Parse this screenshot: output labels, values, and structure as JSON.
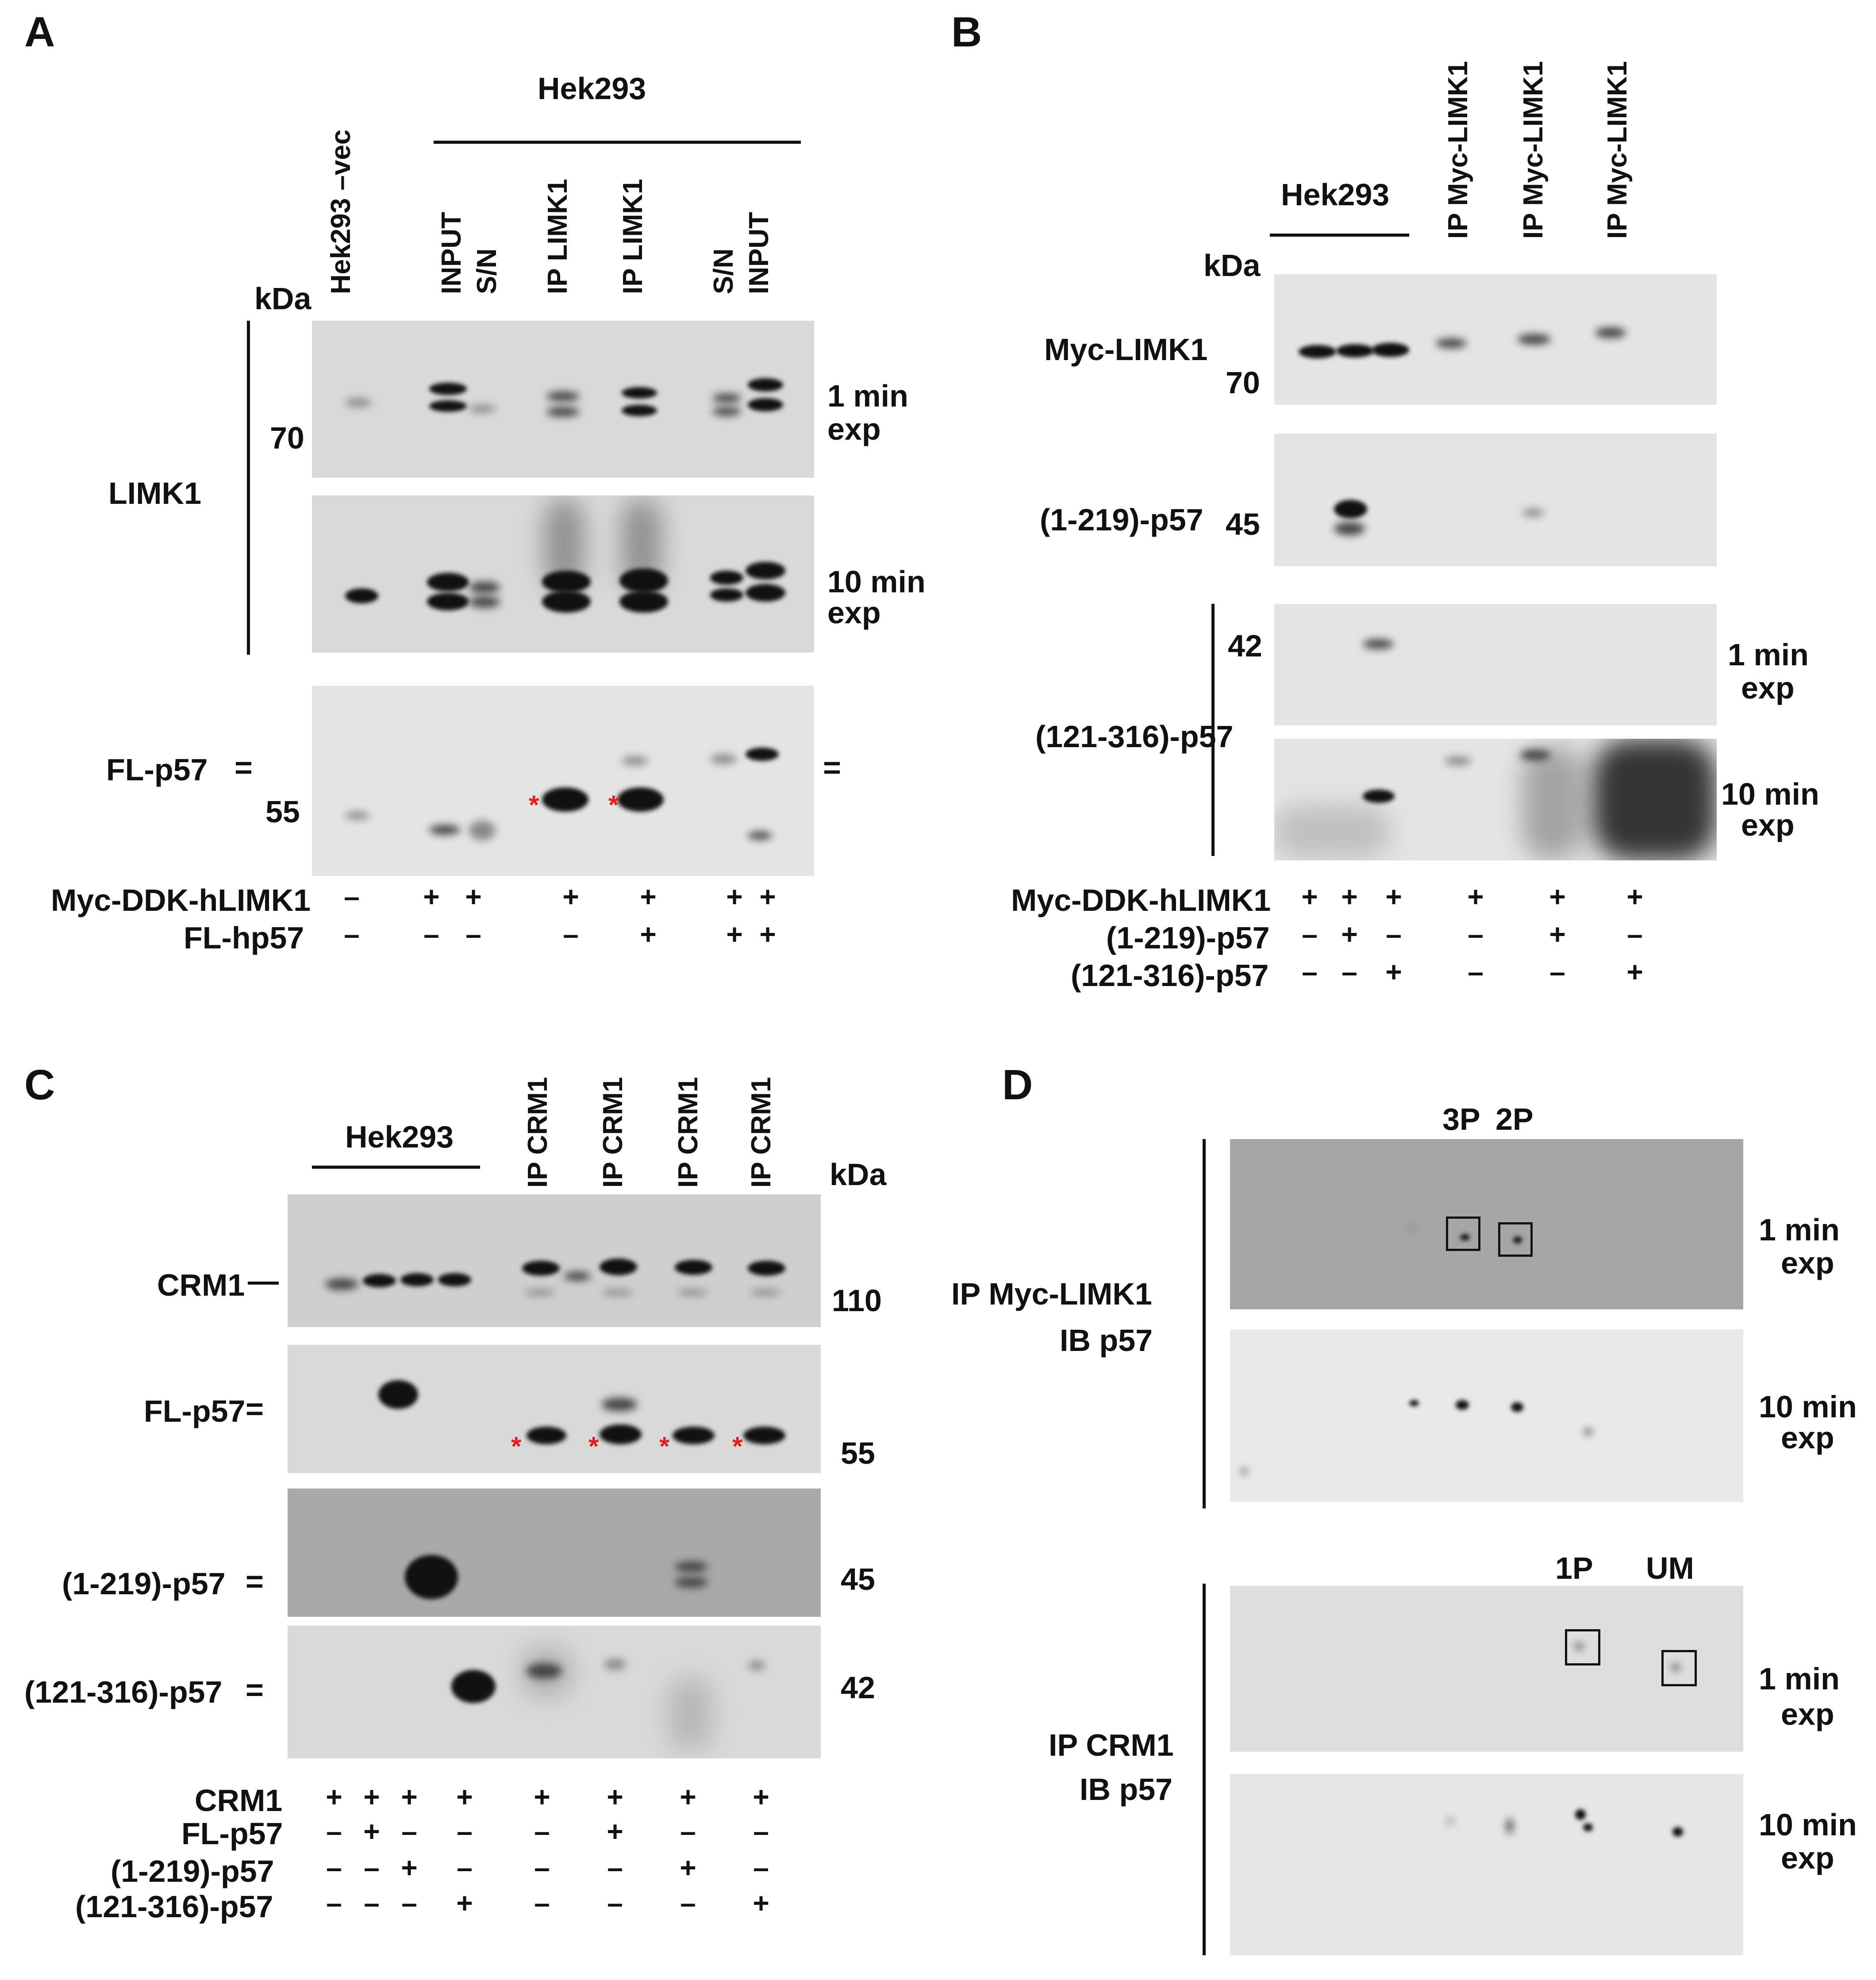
{
  "panels": {
    "A": {
      "letter": "A",
      "cell_line": "Hek293",
      "lanes": [
        "Hek293 –vec",
        "INPUT",
        "S/N",
        "IP LIMK1",
        "IP LIMK1",
        "S/N",
        "INPUT"
      ],
      "kda_label": "kDa",
      "protein_limk1": "LIMK1",
      "mw_70": "70",
      "protein_flp57": "FL-p57",
      "mw_55": "55",
      "exp_1min_a": "1 min",
      "exp_1min_b": "exp",
      "exp_10min_a": "10 min",
      "exp_10min_b": "exp",
      "eq_left": "=",
      "eq_right": "=",
      "row1_label": "Myc-DDK-hLIMK1",
      "row2_label": "FL-hp57",
      "row1_signs": [
        "–",
        "+",
        "+",
        "+",
        "+",
        "+",
        "+"
      ],
      "row2_signs": [
        "–",
        "–",
        "–",
        "–",
        "+",
        "+",
        "+"
      ],
      "asterisk": "*"
    },
    "B": {
      "letter": "B",
      "cell_line": "Hek293",
      "lanes": [
        "IP Myc-LIMK1",
        "IP Myc-LIMK1",
        "IP Myc-LIMK1"
      ],
      "kda_label": "kDa",
      "protein_myc": "Myc-LIMK1",
      "mw_70": "70",
      "protein_1_219": "(1-219)-p57",
      "mw_45": "45",
      "protein_121_316": "(121-316)-p57",
      "mw_42": "42",
      "exp_1min_a": "1 min",
      "exp_1min_b": "exp",
      "exp_10min_a": "10 min",
      "exp_10min_b": "exp",
      "row1_label": "Myc-DDK-hLIMK1",
      "row2_label": "(1-219)-p57",
      "row3_label": "(121-316)-p57",
      "row1_signs": [
        "+",
        "+",
        "+",
        "+",
        "+",
        "+"
      ],
      "row2_signs": [
        "–",
        "+",
        "–",
        "–",
        "+",
        "–"
      ],
      "row3_signs": [
        "–",
        "–",
        "+",
        "–",
        "–",
        "+"
      ]
    },
    "C": {
      "letter": "C",
      "cell_line": "Hek293",
      "lanes": [
        "IP CRM1",
        "IP CRM1",
        "IP CRM1",
        "IP CRM1"
      ],
      "kda_label": "kDa",
      "protein_crm1": "CRM1",
      "mw_110": "110",
      "protein_flp57": "FL-p57",
      "mw_55": "55",
      "protein_1_219": "(1-219)-p57",
      "mw_45": "45",
      "protein_121_316": "(121-316)-p57",
      "mw_42": "42",
      "dash": "—",
      "eq": "=",
      "row1_label": "CRM1",
      "row2_label": "FL-p57",
      "row3_label": "(1-219)-p57",
      "row4_label": "(121-316)-p57",
      "row1_signs": [
        "+",
        "+",
        "+",
        "+",
        "+",
        "+",
        "+",
        "+"
      ],
      "row2_signs": [
        "–",
        "+",
        "–",
        "–",
        "–",
        "+",
        "–",
        "–"
      ],
      "row3_signs": [
        "–",
        "–",
        "+",
        "–",
        "–",
        "–",
        "+",
        "–"
      ],
      "row4_signs": [
        "–",
        "–",
        "–",
        "+",
        "–",
        "–",
        "–",
        "+"
      ],
      "asterisk": "*"
    },
    "D": {
      "letter": "D",
      "spot_3p": "3P",
      "spot_2p": "2P",
      "spot_1p": "1P",
      "spot_um": "UM",
      "top_ip": "IP Myc-LIMK1",
      "top_ib": "IB p57",
      "bottom_ip": "IP CRM1",
      "bottom_ib": "IB p57",
      "exp_1min_a": "1 min",
      "exp_1min_b": "exp",
      "exp_10min_a": "10 min",
      "exp_10min_b": "exp"
    }
  }
}
